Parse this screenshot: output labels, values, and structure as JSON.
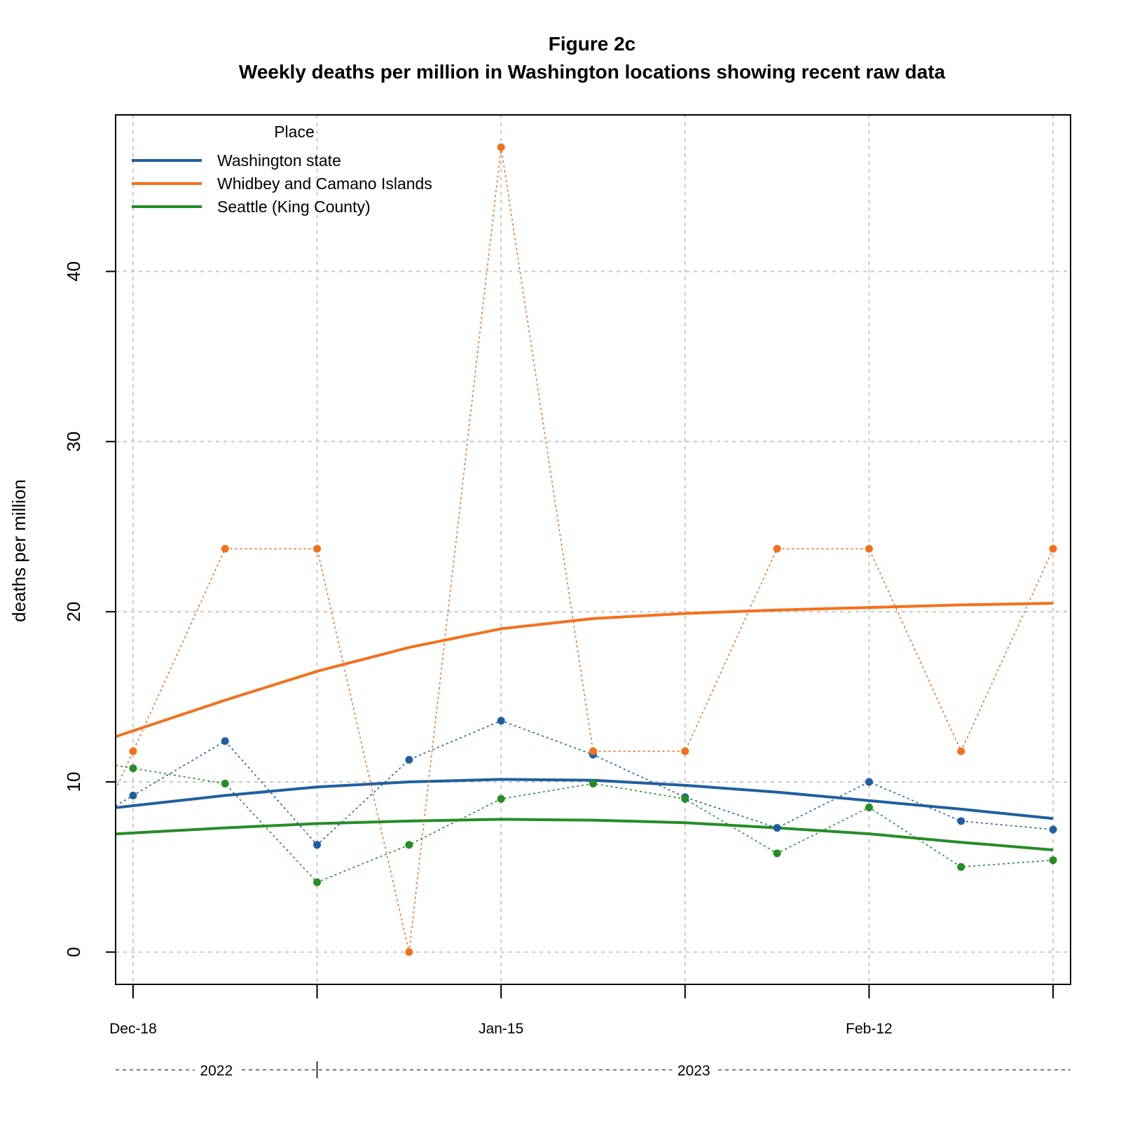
{
  "chart_data": {
    "type": "line",
    "title": "Figure 2c",
    "subtitle": "Weekly deaths per million in Washington locations showing recent raw data",
    "xlabel": "",
    "ylabel": "deaths per million",
    "ylim": [
      -1.9,
      49.2
    ],
    "yticks": [
      0,
      10,
      20,
      30,
      40
    ],
    "x": [
      "2022-12-18",
      "2022-12-25",
      "2023-01-01",
      "2023-01-08",
      "2023-01-15",
      "2023-01-22",
      "2023-01-29",
      "2023-02-05",
      "2023-02-12",
      "2023-02-19",
      "2023-02-26"
    ],
    "xticks": [
      {
        "date": "2022-12-18",
        "label": "Dec-18"
      },
      {
        "date": "2023-01-01",
        "label": ""
      },
      {
        "date": "2023-01-15",
        "label": "Jan-15"
      },
      {
        "date": "2023-01-29",
        "label": ""
      },
      {
        "date": "2023-02-12",
        "label": "Feb-12"
      },
      {
        "date": "2023-02-26",
        "label": ""
      }
    ],
    "years": [
      "2022",
      "2023"
    ],
    "grid": true,
    "legend_title": "Place",
    "legend_position": "top-left",
    "series": [
      {
        "name": "Washington state",
        "color": "#1f5fa0",
        "raw": [
          9.2,
          12.4,
          6.3,
          11.3,
          13.6,
          11.6,
          9.1,
          7.3,
          10.0,
          7.7,
          7.2
        ],
        "smooth": [
          8.6,
          9.2,
          9.7,
          10.0,
          10.15,
          10.1,
          9.8,
          9.4,
          8.9,
          8.4,
          7.85
        ]
      },
      {
        "name": "Whidbey and Camano Islands",
        "color": "#f5701a",
        "raw": [
          11.8,
          23.7,
          23.7,
          0.0,
          47.3,
          11.8,
          11.8,
          23.7,
          23.7,
          11.8,
          23.7
        ],
        "smooth": [
          13.0,
          14.8,
          16.5,
          17.9,
          19.0,
          19.6,
          19.9,
          20.1,
          20.25,
          20.4,
          20.5
        ]
      },
      {
        "name": "Seattle (King County)",
        "color": "#248d24",
        "raw": [
          10.8,
          9.9,
          4.1,
          6.3,
          9.0,
          9.9,
          9.0,
          5.8,
          8.5,
          5.0,
          5.4
        ],
        "smooth": [
          7.0,
          7.3,
          7.55,
          7.7,
          7.8,
          7.75,
          7.6,
          7.3,
          6.95,
          6.45,
          6.0
        ]
      }
    ]
  }
}
